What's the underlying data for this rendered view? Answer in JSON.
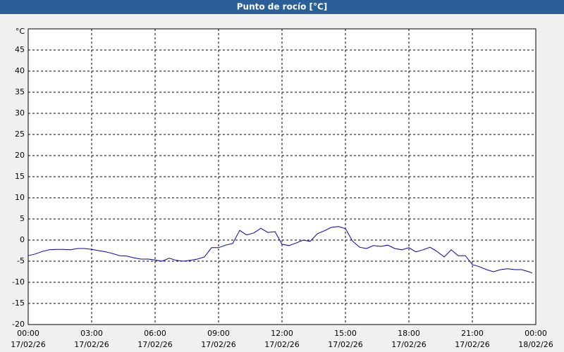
{
  "chart_data": {
    "type": "line",
    "title": "Punto de rocío [°C]",
    "y_label": "°C",
    "xlim": [
      0,
      24
    ],
    "ylim": [
      -20,
      50
    ],
    "yticks": [
      -20,
      -15,
      -10,
      -5,
      0,
      5,
      10,
      15,
      20,
      25,
      30,
      35,
      40,
      45
    ],
    "xticks": [
      {
        "value": 0,
        "label": "00:00",
        "date": "17/02/26"
      },
      {
        "value": 3,
        "label": "03:00",
        "date": "17/02/26"
      },
      {
        "value": 6,
        "label": "06:00",
        "date": "17/02/26"
      },
      {
        "value": 9,
        "label": "09:00",
        "date": "17/02/26"
      },
      {
        "value": 12,
        "label": "12:00",
        "date": "17/02/26"
      },
      {
        "value": 15,
        "label": "15:00",
        "date": "17/02/26"
      },
      {
        "value": 18,
        "label": "18:00",
        "date": "17/02/26"
      },
      {
        "value": 21,
        "label": "21:00",
        "date": "17/02/26"
      },
      {
        "value": 24,
        "label": "00:00",
        "date": "18/02/26"
      }
    ],
    "grid": true,
    "series": [
      {
        "color": "#0000c0",
        "x": [
          0,
          0.33,
          0.67,
          1,
          1.33,
          1.67,
          2,
          2.33,
          2.67,
          3,
          3.33,
          3.67,
          4,
          4.33,
          4.67,
          5,
          5.33,
          5.67,
          6,
          6.33,
          6.67,
          7,
          7.33,
          7.67,
          8,
          8.33,
          8.67,
          9,
          9.33,
          9.67,
          10,
          10.33,
          10.67,
          11,
          11.33,
          11.67,
          12,
          12.33,
          12.67,
          13,
          13.33,
          13.67,
          14,
          14.33,
          14.67,
          15,
          15.33,
          15.67,
          16,
          16.33,
          16.67,
          17,
          17.33,
          17.67,
          18,
          18.33,
          18.67,
          19,
          19.33,
          19.67,
          20,
          20.33,
          20.67,
          21,
          21.33,
          21.67,
          22,
          22.33,
          22.67,
          23,
          23.33,
          23.67,
          23.83
        ],
        "values": [
          -3.7,
          -3.3,
          -2.7,
          -2.3,
          -2.2,
          -2.2,
          -2.3,
          -2.0,
          -2.0,
          -2.2,
          -2.5,
          -2.8,
          -3.2,
          -3.7,
          -3.8,
          -4.2,
          -4.5,
          -4.5,
          -4.7,
          -5.0,
          -4.3,
          -4.8,
          -5.0,
          -4.8,
          -4.5,
          -4.0,
          -1.8,
          -1.8,
          -1.2,
          -0.8,
          2.3,
          1.2,
          1.7,
          2.8,
          1.8,
          2.0,
          -1.0,
          -1.3,
          -0.7,
          0,
          -0.3,
          1.5,
          2.2,
          3.0,
          3.2,
          2.7,
          -0.2,
          -1.7,
          -2.0,
          -1.3,
          -1.5,
          -1.2,
          -2.0,
          -2.3,
          -1.8,
          -2.8,
          -2.3,
          -1.7,
          -2.7,
          -4.0,
          -2.3,
          -3.7,
          -3.7,
          -5.8,
          -6.3,
          -7.0,
          -7.5,
          -7.0,
          -6.8,
          -7.0,
          -7.0,
          -7.5,
          -7.8
        ]
      }
    ]
  }
}
